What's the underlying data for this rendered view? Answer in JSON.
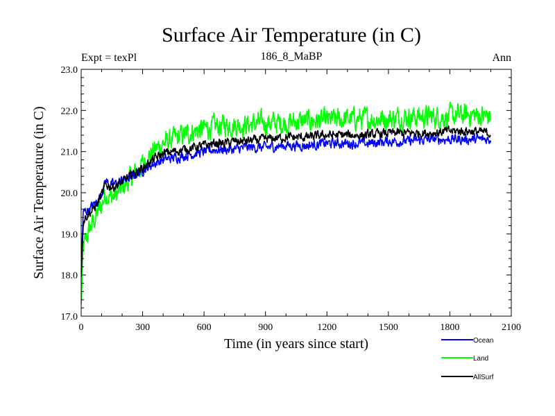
{
  "chart_data": {
    "type": "line",
    "title": "Surface Air Temperature (in C)",
    "subtitle": "186_8_MaBP",
    "left_label": "Expt = texPl",
    "right_label": "Ann",
    "xlabel": "Time (in years since start)",
    "ylabel": "Surface Air Temperature (in C)",
    "xlim": [
      0,
      2100
    ],
    "ylim": [
      17.0,
      23.0
    ],
    "x_ticks": [
      0,
      300,
      600,
      900,
      1200,
      1500,
      1800,
      2100
    ],
    "x_tick_labels": [
      "0",
      "300",
      "600",
      "900",
      "1200",
      "1500",
      "1800",
      "2100"
    ],
    "y_ticks": [
      17.0,
      18.0,
      19.0,
      20.0,
      21.0,
      22.0,
      23.0
    ],
    "y_tick_labels": [
      "17.0",
      "18.0",
      "19.0",
      "20.0",
      "21.0",
      "22.0",
      "23.0"
    ],
    "grid": false,
    "legend_position": "bottom-right",
    "series": [
      {
        "name": "Ocean",
        "color": "#0000ff",
        "x": [
          0,
          10,
          20,
          40,
          60,
          80,
          100,
          120,
          140,
          160,
          180,
          200,
          250,
          300,
          350,
          400,
          450,
          500,
          550,
          600,
          650,
          700,
          750,
          800,
          900,
          1000,
          1100,
          1200,
          1300,
          1400,
          1500,
          1600,
          1700,
          1800,
          1900,
          2000
        ],
        "values": [
          18.3,
          19.5,
          19.55,
          19.6,
          19.7,
          19.8,
          20.0,
          20.3,
          20.2,
          20.2,
          20.25,
          20.3,
          20.4,
          20.55,
          20.7,
          20.8,
          20.85,
          20.9,
          20.95,
          21.0,
          21.05,
          21.05,
          21.05,
          21.1,
          21.1,
          21.15,
          21.15,
          21.2,
          21.2,
          21.2,
          21.25,
          21.25,
          21.3,
          21.3,
          21.3,
          21.3
        ],
        "noise": 0.1
      },
      {
        "name": "Land",
        "color": "#00ff00",
        "x": [
          0,
          10,
          20,
          40,
          60,
          80,
          100,
          120,
          140,
          160,
          180,
          200,
          250,
          300,
          350,
          400,
          450,
          500,
          550,
          600,
          650,
          700,
          750,
          800,
          900,
          1000,
          1100,
          1200,
          1300,
          1400,
          1500,
          1600,
          1700,
          1800,
          1900,
          2000
        ],
        "values": [
          17.2,
          18.6,
          18.8,
          19.1,
          19.3,
          19.5,
          19.7,
          20.0,
          19.9,
          19.9,
          20.0,
          20.1,
          20.4,
          20.7,
          21.0,
          21.2,
          21.3,
          21.4,
          21.5,
          21.55,
          21.6,
          21.65,
          21.65,
          21.65,
          21.7,
          21.7,
          21.75,
          21.75,
          21.8,
          21.8,
          21.8,
          21.85,
          21.85,
          21.85,
          21.9,
          21.85
        ],
        "noise": 0.22
      },
      {
        "name": "AllSurf",
        "color": "#000000",
        "x": [
          0,
          10,
          20,
          40,
          60,
          80,
          100,
          120,
          140,
          160,
          180,
          200,
          250,
          300,
          350,
          400,
          450,
          500,
          550,
          600,
          650,
          700,
          750,
          800,
          900,
          1000,
          1100,
          1200,
          1300,
          1400,
          1500,
          1600,
          1700,
          1800,
          1900,
          2000
        ],
        "values": [
          18.0,
          19.3,
          19.4,
          19.5,
          19.6,
          19.75,
          19.95,
          20.2,
          20.15,
          20.15,
          20.2,
          20.25,
          20.45,
          20.6,
          20.8,
          20.95,
          21.0,
          21.05,
          21.1,
          21.15,
          21.2,
          21.2,
          21.25,
          21.25,
          21.3,
          21.35,
          21.35,
          21.4,
          21.4,
          21.4,
          21.45,
          21.45,
          21.45,
          21.5,
          21.5,
          21.45
        ],
        "noise": 0.09
      }
    ]
  }
}
